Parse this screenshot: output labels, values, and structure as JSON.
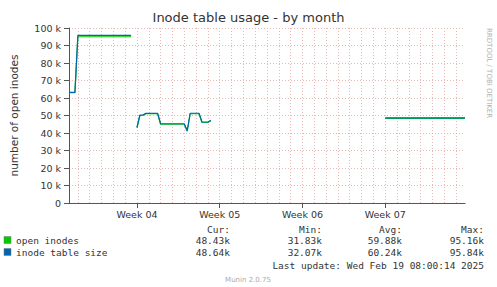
{
  "chart_data": {
    "type": "line",
    "title": "Inode table usage - by month",
    "y_label": "number of open inodes",
    "categories": [
      null,
      null,
      null,
      null,
      null,
      null,
      null,
      null,
      null,
      null,
      null,
      null,
      null,
      null,
      null,
      null,
      null,
      null,
      null,
      null,
      null,
      null,
      null,
      "Week 04",
      null,
      null,
      null,
      null,
      null,
      null,
      null,
      null,
      null,
      null,
      null,
      null,
      null,
      null,
      null,
      null,
      null,
      null,
      null,
      null,
      null,
      null,
      null,
      null,
      null,
      null,
      null,
      "Week 05",
      null,
      null,
      null,
      null,
      null,
      null,
      null,
      null,
      null,
      null,
      null,
      null,
      null,
      null,
      null,
      null,
      null,
      null,
      null,
      null,
      null,
      null,
      null,
      null,
      null,
      null,
      null,
      "Week 06",
      null,
      null,
      null,
      null,
      null,
      null,
      null,
      null,
      null,
      null,
      null,
      null,
      null,
      null,
      null,
      null,
      null,
      null,
      null,
      null,
      null,
      null,
      null,
      null,
      null,
      null,
      null,
      "Week 07",
      null,
      null,
      null,
      null,
      null,
      null,
      null,
      null,
      null,
      null,
      null,
      null,
      null,
      null,
      null,
      null,
      null,
      null,
      null,
      null,
      null,
      null,
      null,
      null,
      null,
      null,
      null
    ],
    "series": [
      {
        "name": "open inodes",
        "color": "#00cc00",
        "stats": [
          "48.43k",
          "31.83k",
          "59.88k",
          "95.16k"
        ],
        "values": [
          63000,
          63000,
          63000,
          95000,
          95000,
          95000,
          95000,
          95000,
          95000,
          95000,
          95000,
          95000,
          95000,
          95000,
          95000,
          95000,
          95000,
          95000,
          95000,
          95000,
          95000,
          95000,
          null,
          43000,
          50000,
          50000,
          51000,
          51000,
          51000,
          51000,
          51000,
          45000,
          45000,
          45000,
          45000,
          45000,
          45000,
          45000,
          45000,
          45000,
          41000,
          51000,
          51000,
          51000,
          51000,
          46000,
          46000,
          46000,
          47000,
          null,
          null,
          null,
          null,
          null,
          null,
          null,
          null,
          null,
          null,
          null,
          null,
          null,
          null,
          null,
          null,
          null,
          null,
          null,
          null,
          null,
          null,
          null,
          null,
          null,
          null,
          null,
          null,
          null,
          null,
          null,
          null,
          null,
          null,
          null,
          null,
          null,
          null,
          null,
          null,
          null,
          null,
          null,
          null,
          null,
          null,
          null,
          null,
          null,
          null,
          null,
          null,
          null,
          null,
          null,
          null,
          null,
          null,
          48400,
          48400,
          48400,
          48400,
          48400,
          48400,
          48400,
          48400,
          48400,
          48400,
          48400,
          48400,
          48400,
          48400,
          48400,
          48400,
          48400,
          48400,
          48400,
          48400,
          48400,
          48400,
          48400,
          48400,
          48400,
          48400,
          48400,
          48400
        ]
      },
      {
        "name": "inode table size",
        "color": "#0066b3",
        "stats": [
          "48.64k",
          "32.07k",
          "60.24k",
          "95.84k"
        ],
        "values": [
          63200,
          63200,
          63200,
          95800,
          95800,
          95800,
          95800,
          95800,
          95800,
          95800,
          95800,
          95800,
          95800,
          95800,
          95800,
          95800,
          95800,
          95800,
          95800,
          95800,
          95800,
          95800,
          null,
          43200,
          50300,
          50300,
          51200,
          51200,
          51200,
          51200,
          51200,
          45300,
          45300,
          45300,
          45300,
          45300,
          45300,
          45300,
          45300,
          45300,
          41300,
          51300,
          51300,
          51300,
          51300,
          46300,
          46300,
          46300,
          47200,
          null,
          null,
          null,
          null,
          null,
          null,
          null,
          null,
          null,
          null,
          null,
          null,
          null,
          null,
          null,
          null,
          null,
          null,
          null,
          null,
          null,
          null,
          null,
          null,
          null,
          null,
          null,
          null,
          null,
          null,
          null,
          null,
          null,
          null,
          null,
          null,
          null,
          null,
          null,
          null,
          null,
          null,
          null,
          null,
          null,
          null,
          null,
          null,
          null,
          null,
          null,
          null,
          null,
          null,
          null,
          null,
          null,
          null,
          48600,
          48600,
          48600,
          48600,
          48600,
          48600,
          48600,
          48600,
          48600,
          48600,
          48600,
          48600,
          48600,
          48600,
          48600,
          48600,
          48600,
          48600,
          48600,
          48600,
          48600,
          48600,
          48600,
          48600,
          48600,
          48600,
          48600,
          48600
        ]
      }
    ],
    "stats_labels": [
      "Cur:",
      "Min:",
      "Avg:",
      "Max:"
    ],
    "ylim": [
      0,
      100000
    ],
    "yticks": [
      0,
      {
        "value": 10000,
        "label": "10 k"
      },
      {
        "value": 20000,
        "label": "20 k"
      },
      {
        "value": 30000,
        "label": "30 k"
      },
      {
        "value": 40000,
        "label": "40 k"
      },
      {
        "value": 50000,
        "label": "50 k"
      },
      {
        "value": 60000,
        "label": "60 k"
      },
      {
        "value": 70000,
        "label": "70 k"
      },
      {
        "value": 80000,
        "label": "80 k"
      },
      {
        "value": 90000,
        "label": "90 k"
      },
      {
        "value": 100000,
        "label": "100 k"
      }
    ],
    "grid": true,
    "legend": "lower left",
    "footer": "Last update: Wed Feb 19 08:00:14 2025",
    "credit": "Munin 2.0.75",
    "watermark": "RRDTOOL / TOBI OETIKER"
  }
}
